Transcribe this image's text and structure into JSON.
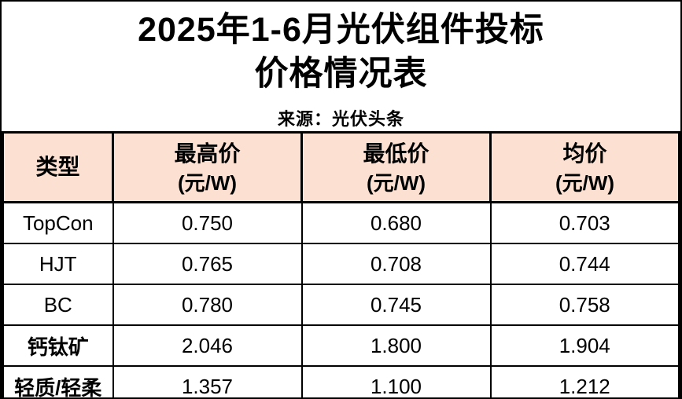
{
  "title": {
    "line1": "2025年1-6月光伏组件投标",
    "line2": "价格情况表"
  },
  "source": "来源：光伏头条",
  "colors": {
    "header_bg": "#fce0d2",
    "border": "#000000",
    "text": "#000000",
    "background": "#ffffff"
  },
  "table": {
    "headers": [
      {
        "label": "类型",
        "unit": ""
      },
      {
        "label": "最高价",
        "unit": "(元/W)"
      },
      {
        "label": "最低价",
        "unit": "(元/W)"
      },
      {
        "label": "均价",
        "unit": "(元/W)"
      }
    ],
    "rows": [
      {
        "type": "TopCon",
        "max": "0.750",
        "min": "0.680",
        "avg": "0.703"
      },
      {
        "type": "HJT",
        "max": "0.765",
        "min": "0.708",
        "avg": "0.744"
      },
      {
        "type": "BC",
        "max": "0.780",
        "min": "0.745",
        "avg": "0.758"
      },
      {
        "type": "钙钛矿",
        "max": "2.046",
        "min": "1.800",
        "avg": "1.904"
      },
      {
        "type": "轻质/轻柔",
        "max": "1.357",
        "min": "1.100",
        "avg": "1.212"
      }
    ]
  },
  "chart_data": {
    "type": "table",
    "title": "2025年1-6月光伏组件投标价格情况表",
    "source": "来源：光伏头条",
    "columns": [
      "类型",
      "最高价(元/W)",
      "最低价(元/W)",
      "均价(元/W)"
    ],
    "categories": [
      "TopCon",
      "HJT",
      "BC",
      "钙钛矿",
      "轻质/轻柔"
    ],
    "series": [
      {
        "name": "最高价(元/W)",
        "values": [
          0.75,
          0.765,
          0.78,
          2.046,
          1.357
        ]
      },
      {
        "name": "最低价(元/W)",
        "values": [
          0.68,
          0.708,
          0.745,
          1.8,
          1.1
        ]
      },
      {
        "name": "均价(元/W)",
        "values": [
          0.703,
          0.744,
          0.758,
          1.904,
          1.212
        ]
      }
    ]
  }
}
